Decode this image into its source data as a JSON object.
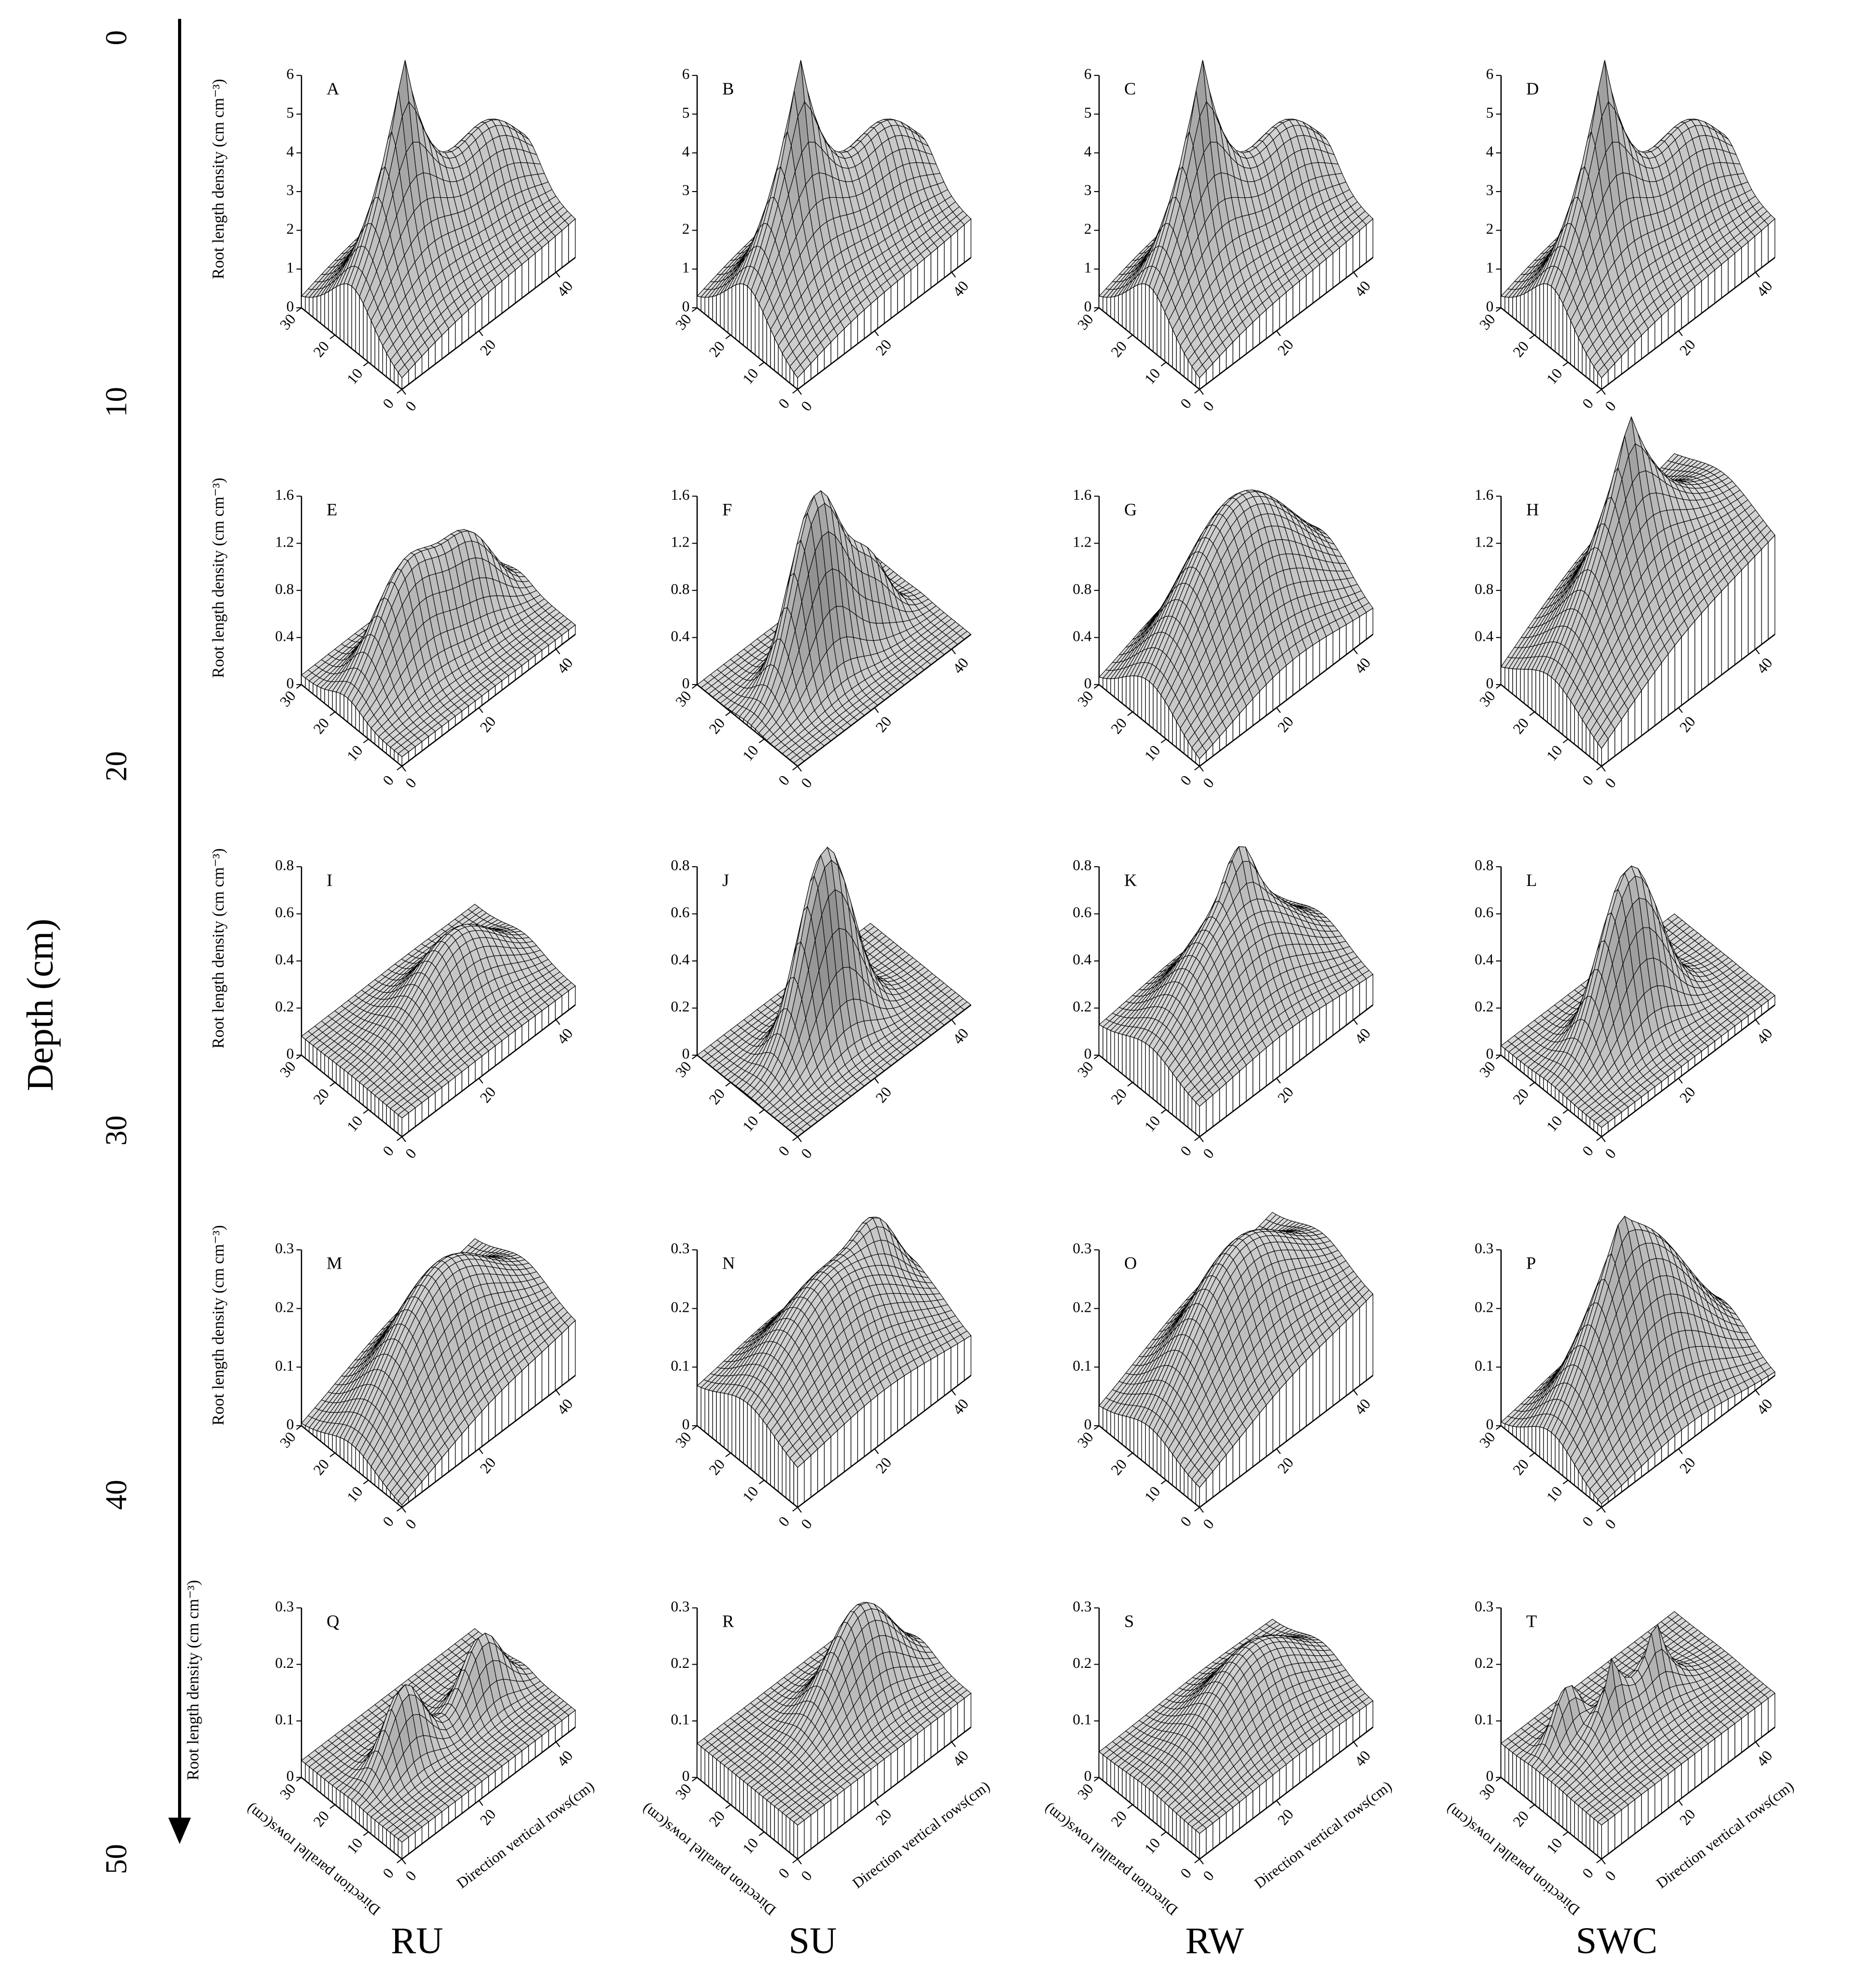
{
  "figure": {
    "depth_label": "Depth (cm)",
    "depth_lim": [
      0,
      50
    ],
    "depth_ticks": [
      0,
      10,
      20,
      30,
      40,
      50
    ],
    "column_labels": [
      "RU",
      "SU",
      "RW",
      "SWC"
    ]
  },
  "chart_data": [
    {
      "type": "surface",
      "title": "A",
      "zlabel": "Root length density (cm cm⁻³)",
      "zlim": [
        0,
        6
      ],
      "zticks": [
        0,
        1,
        2,
        3,
        4,
        5,
        6
      ],
      "ylim": [
        0,
        30
      ],
      "yticks": [
        0,
        10,
        20,
        30
      ],
      "xlim": [
        0,
        45
      ],
      "xticks": [
        0,
        20,
        40
      ]
    },
    {
      "type": "surface",
      "title": "B",
      "zlim": [
        0,
        6
      ],
      "zticks": [
        0,
        1,
        2,
        3,
        4,
        5,
        6
      ],
      "ylim": [
        0,
        30
      ],
      "yticks": [
        0,
        10,
        20,
        30
      ],
      "xlim": [
        0,
        45
      ],
      "xticks": [
        0,
        20,
        40
      ]
    },
    {
      "type": "surface",
      "title": "C",
      "zlim": [
        0,
        6
      ],
      "zticks": [
        0,
        1,
        2,
        3,
        4,
        5,
        6
      ],
      "ylim": [
        0,
        30
      ],
      "yticks": [
        0,
        10,
        20,
        30
      ],
      "xlim": [
        0,
        45
      ],
      "xticks": [
        0,
        20,
        40
      ]
    },
    {
      "type": "surface",
      "title": "D",
      "zlim": [
        0,
        6
      ],
      "zticks": [
        0,
        1,
        2,
        3,
        4,
        5,
        6
      ],
      "ylim": [
        0,
        30
      ],
      "yticks": [
        0,
        10,
        20,
        30
      ],
      "xlim": [
        0,
        45
      ],
      "xticks": [
        0,
        20,
        40
      ]
    },
    {
      "type": "surface",
      "title": "E",
      "zlabel": "Root length density (cm cm⁻³)",
      "zlim": [
        0,
        1.6
      ],
      "zticks": [
        0,
        0.4,
        0.8,
        1.2,
        1.6
      ],
      "ylim": [
        0,
        30
      ],
      "yticks": [
        0,
        10,
        20,
        30
      ],
      "xlim": [
        0,
        45
      ],
      "xticks": [
        0,
        20,
        40
      ]
    },
    {
      "type": "surface",
      "title": "F",
      "zlim": [
        0,
        1.6
      ],
      "zticks": [
        0,
        0.4,
        0.8,
        1.2,
        1.6
      ],
      "ylim": [
        0,
        30
      ],
      "yticks": [
        0,
        10,
        20,
        30
      ],
      "xlim": [
        0,
        45
      ],
      "xticks": [
        0,
        20,
        40
      ]
    },
    {
      "type": "surface",
      "title": "G",
      "zlim": [
        0,
        1.6
      ],
      "zticks": [
        0,
        0.4,
        0.8,
        1.2,
        1.6
      ],
      "ylim": [
        0,
        30
      ],
      "yticks": [
        0,
        10,
        20,
        30
      ],
      "xlim": [
        0,
        45
      ],
      "xticks": [
        0,
        20,
        40
      ]
    },
    {
      "type": "surface",
      "title": "H",
      "zlim": [
        0,
        1.6
      ],
      "zticks": [
        0,
        0.4,
        0.8,
        1.2,
        1.6
      ],
      "ylim": [
        0,
        30
      ],
      "yticks": [
        0,
        10,
        20,
        30
      ],
      "xlim": [
        0,
        45
      ],
      "xticks": [
        0,
        20,
        40
      ]
    },
    {
      "type": "surface",
      "title": "I",
      "zlabel": "Root length density (cm cm⁻³)",
      "zlim": [
        0,
        0.8
      ],
      "zticks": [
        0,
        0.2,
        0.4,
        0.6,
        0.8
      ],
      "ylim": [
        0,
        30
      ],
      "yticks": [
        0,
        10,
        20,
        30
      ],
      "xlim": [
        0,
        45
      ],
      "xticks": [
        0,
        20,
        40
      ]
    },
    {
      "type": "surface",
      "title": "J",
      "zlim": [
        0,
        0.8
      ],
      "zticks": [
        0,
        0.2,
        0.4,
        0.6,
        0.8
      ],
      "ylim": [
        0,
        30
      ],
      "yticks": [
        0,
        10,
        20,
        30
      ],
      "xlim": [
        0,
        45
      ],
      "xticks": [
        0,
        20,
        40
      ]
    },
    {
      "type": "surface",
      "title": "K",
      "zlim": [
        0,
        0.8
      ],
      "zticks": [
        0,
        0.2,
        0.4,
        0.6,
        0.8
      ],
      "ylim": [
        0,
        30
      ],
      "yticks": [
        0,
        10,
        20,
        30
      ],
      "xlim": [
        0,
        45
      ],
      "xticks": [
        0,
        20,
        40
      ]
    },
    {
      "type": "surface",
      "title": "L",
      "zlim": [
        0,
        0.8
      ],
      "zticks": [
        0,
        0.2,
        0.4,
        0.6,
        0.8
      ],
      "ylim": [
        0,
        30
      ],
      "yticks": [
        0,
        10,
        20,
        30
      ],
      "xlim": [
        0,
        45
      ],
      "xticks": [
        0,
        20,
        40
      ]
    },
    {
      "type": "surface",
      "title": "M",
      "zlabel": "Root length density (cm cm⁻³)",
      "zlim": [
        0,
        0.3
      ],
      "zticks": [
        0,
        0.1,
        0.2,
        0.3
      ],
      "ylim": [
        0,
        30
      ],
      "yticks": [
        0,
        10,
        20,
        30
      ],
      "xlim": [
        0,
        45
      ],
      "xticks": [
        0,
        20,
        40
      ]
    },
    {
      "type": "surface",
      "title": "N",
      "zlim": [
        0,
        0.3
      ],
      "zticks": [
        0,
        0.1,
        0.2,
        0.3
      ],
      "ylim": [
        0,
        30
      ],
      "yticks": [
        0,
        10,
        20,
        30
      ],
      "xlim": [
        0,
        45
      ],
      "xticks": [
        0,
        20,
        40
      ]
    },
    {
      "type": "surface",
      "title": "O",
      "zlim": [
        0,
        0.3
      ],
      "zticks": [
        0,
        0.1,
        0.2,
        0.3
      ],
      "ylim": [
        0,
        30
      ],
      "yticks": [
        0,
        10,
        20,
        30
      ],
      "xlim": [
        0,
        45
      ],
      "xticks": [
        0,
        20,
        40
      ]
    },
    {
      "type": "surface",
      "title": "P",
      "zlim": [
        0,
        0.3
      ],
      "zticks": [
        0,
        0.1,
        0.2,
        0.3
      ],
      "ylim": [
        0,
        30
      ],
      "yticks": [
        0,
        10,
        20,
        30
      ],
      "xlim": [
        0,
        45
      ],
      "xticks": [
        0,
        20,
        40
      ]
    },
    {
      "type": "surface",
      "title": "Q",
      "zlabel": "Root length density (cm cm⁻³)",
      "zlim": [
        0,
        0.3
      ],
      "zticks": [
        0,
        0.1,
        0.2,
        0.3
      ],
      "ylim": [
        0,
        30
      ],
      "yticks": [
        0,
        10,
        20,
        30
      ],
      "xlim": [
        0,
        45
      ],
      "xticks": [
        0,
        20,
        40
      ],
      "ylabel": "Direction parallel rows(cm)",
      "xlabel": "Direction vertical rows(cm)"
    },
    {
      "type": "surface",
      "title": "R",
      "zlim": [
        0,
        0.3
      ],
      "zticks": [
        0,
        0.1,
        0.2,
        0.3
      ],
      "ylim": [
        0,
        30
      ],
      "yticks": [
        0,
        10,
        20,
        30
      ],
      "xlim": [
        0,
        45
      ],
      "xticks": [
        0,
        20,
        40
      ],
      "ylabel": "Direction parallel rows(cm)",
      "xlabel": "Direction vertical rows(cm)"
    },
    {
      "type": "surface",
      "title": "S",
      "zlim": [
        0,
        0.3
      ],
      "zticks": [
        0,
        0.1,
        0.2,
        0.3
      ],
      "ylim": [
        0,
        30
      ],
      "yticks": [
        0,
        10,
        20,
        30
      ],
      "xlim": [
        0,
        45
      ],
      "xticks": [
        0,
        20,
        40
      ],
      "ylabel": "Direction parallel rows(cm)",
      "xlabel": "Direction vertical rows(cm)"
    },
    {
      "type": "surface",
      "title": "T",
      "zlim": [
        0,
        0.3
      ],
      "zticks": [
        0,
        0.1,
        0.2,
        0.3
      ],
      "ylim": [
        0,
        30
      ],
      "yticks": [
        0,
        10,
        20,
        30
      ],
      "xlim": [
        0,
        45
      ],
      "xticks": [
        0,
        20,
        40
      ],
      "ylabel": "Direction parallel rows(cm)",
      "xlabel": "Direction vertical rows(cm)"
    }
  ]
}
